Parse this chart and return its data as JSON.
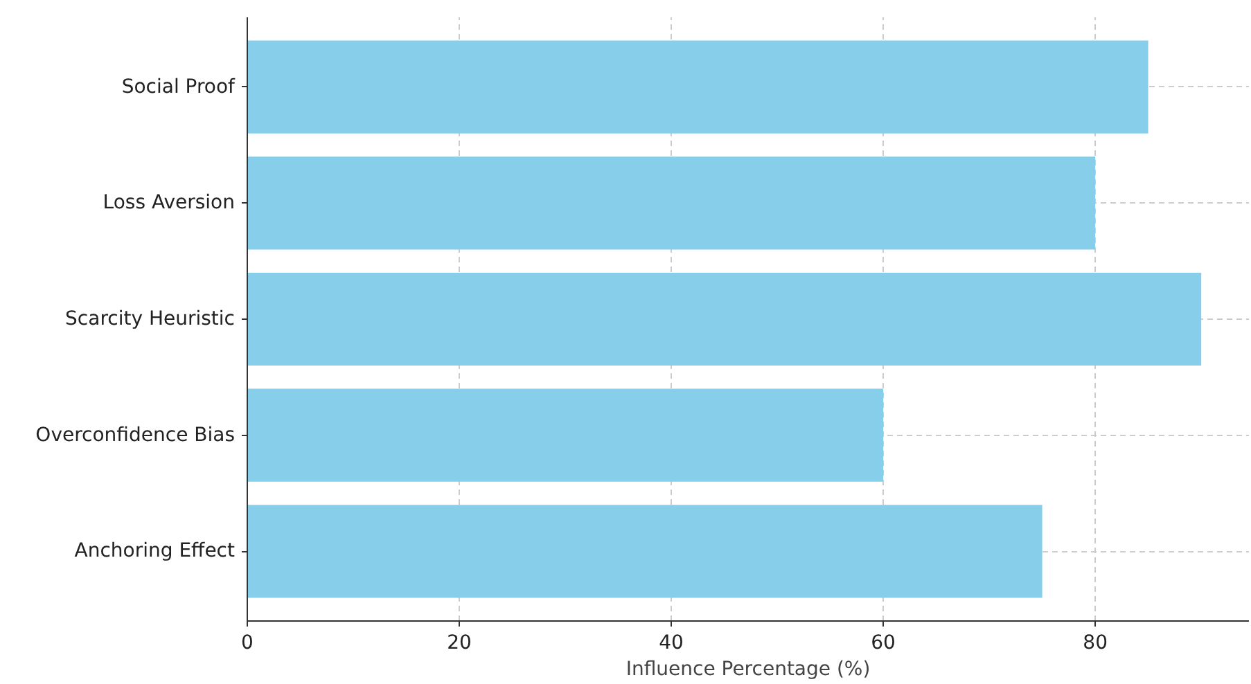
{
  "chart_data": {
    "type": "bar",
    "orientation": "horizontal",
    "xlabel": "Influence Percentage (%)",
    "categories": [
      "Social Proof",
      "Loss Aversion",
      "Scarcity Heuristic",
      "Overconfidence Bias",
      "Anchoring Effect"
    ],
    "values": [
      85,
      80,
      90,
      60,
      75
    ],
    "color": "#87ceeb",
    "xlim": [
      0,
      94.5
    ],
    "xticks": [
      0,
      20,
      40,
      60,
      80
    ],
    "grid": true
  }
}
